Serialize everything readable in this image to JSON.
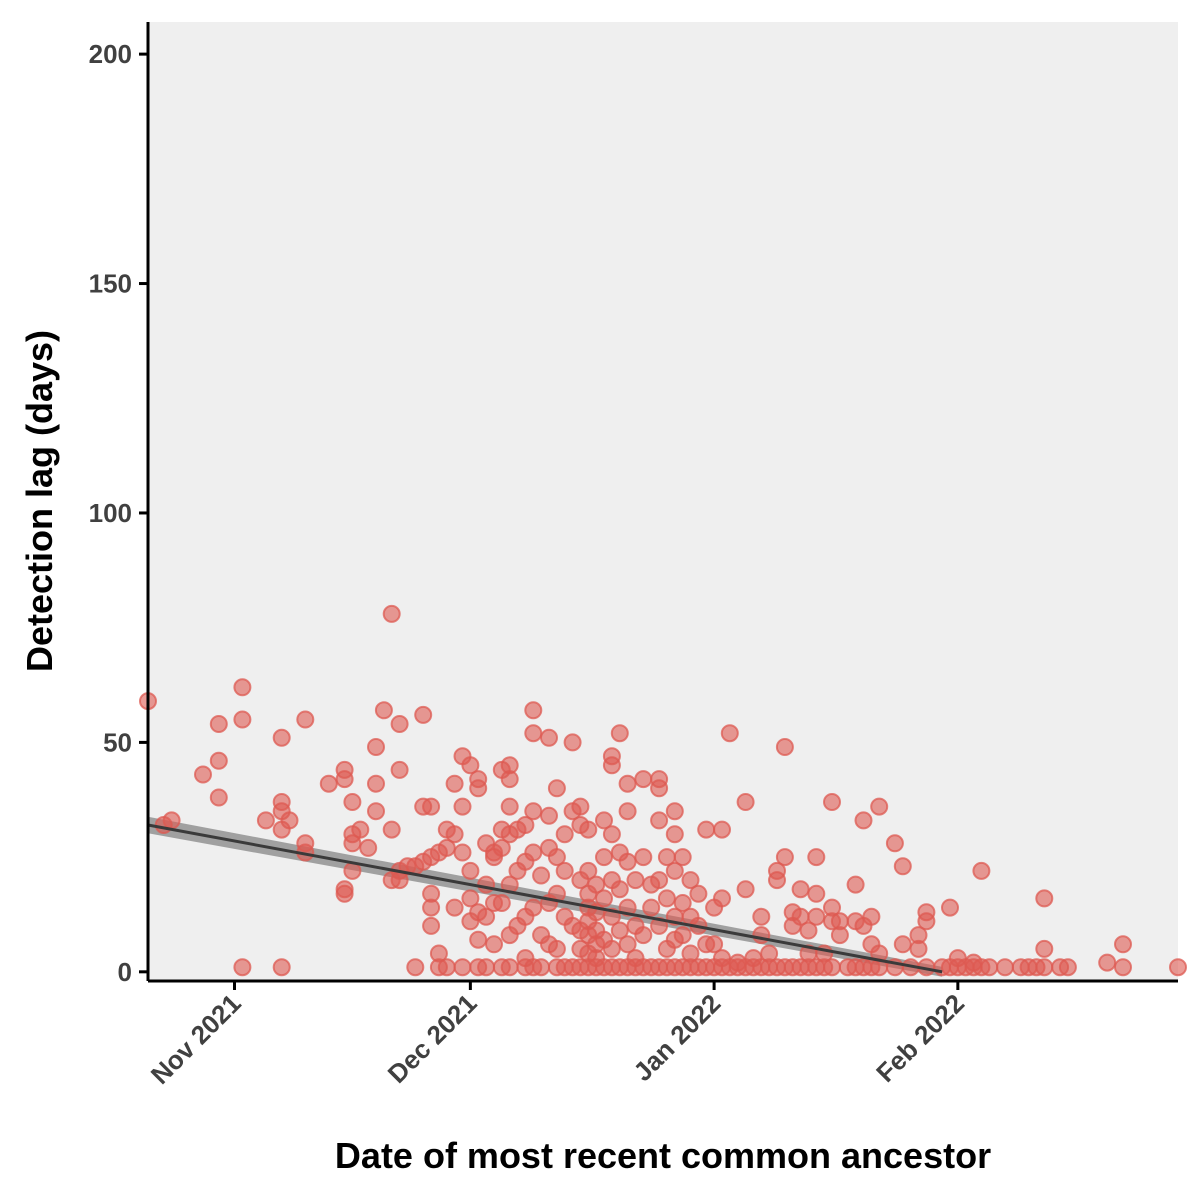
{
  "chart_data": {
    "type": "scatter",
    "title": "",
    "xlabel": "Date of most recent common ancestor",
    "ylabel": "Detection lag (days)",
    "xlim": [
      "2021-10-21",
      "2022-03-01"
    ],
    "ylim": [
      -2,
      207
    ],
    "x_ticks": [
      {
        "date": "2021-11-01",
        "label": "Nov 2021"
      },
      {
        "date": "2021-12-01",
        "label": "Dec 2021"
      },
      {
        "date": "2022-01-01",
        "label": "Jan 2022"
      },
      {
        "date": "2022-02-01",
        "label": "Feb 2022"
      }
    ],
    "y_ticks": [
      0,
      50,
      100,
      150,
      200
    ],
    "grid": false,
    "legend": "none",
    "colors": {
      "point": "#de5a52",
      "trend_line": "#3a3a3a",
      "confidence_band": "#8c8c8c",
      "panel_background": "#efefef",
      "axis": "#000000"
    },
    "trend": {
      "start": {
        "date": "2021-10-21",
        "value": 32
      },
      "end": {
        "date": "2022-01-30",
        "value": 0
      },
      "band_halfwidth_days": 1.8
    },
    "points": [
      [
        "2021-10-21",
        59
      ],
      [
        "2021-10-23",
        32
      ],
      [
        "2021-10-24",
        33
      ],
      [
        "2021-10-28",
        43
      ],
      [
        "2021-10-30",
        38
      ],
      [
        "2021-10-30",
        46
      ],
      [
        "2021-10-30",
        54
      ],
      [
        "2021-11-02",
        62
      ],
      [
        "2021-11-02",
        55
      ],
      [
        "2021-11-02",
        1
      ],
      [
        "2021-11-05",
        33
      ],
      [
        "2021-11-07",
        51
      ],
      [
        "2021-11-07",
        37
      ],
      [
        "2021-11-07",
        35
      ],
      [
        "2021-11-07",
        31
      ],
      [
        "2021-11-07",
        1
      ],
      [
        "2021-11-08",
        33
      ],
      [
        "2021-11-10",
        55
      ],
      [
        "2021-11-10",
        28
      ],
      [
        "2021-11-10",
        26
      ],
      [
        "2021-11-13",
        41
      ],
      [
        "2021-11-15",
        44
      ],
      [
        "2021-11-15",
        42
      ],
      [
        "2021-11-15",
        18
      ],
      [
        "2021-11-15",
        17
      ],
      [
        "2021-11-16",
        37
      ],
      [
        "2021-11-16",
        30
      ],
      [
        "2021-11-16",
        28
      ],
      [
        "2021-11-16",
        22
      ],
      [
        "2021-11-17",
        31
      ],
      [
        "2021-11-18",
        27
      ],
      [
        "2021-11-19",
        49
      ],
      [
        "2021-11-19",
        41
      ],
      [
        "2021-11-19",
        35
      ],
      [
        "2021-11-20",
        57
      ],
      [
        "2021-11-21",
        78
      ],
      [
        "2021-11-21",
        31
      ],
      [
        "2021-11-21",
        20
      ],
      [
        "2021-11-22",
        54
      ],
      [
        "2021-11-22",
        44
      ],
      [
        "2021-11-22",
        22
      ],
      [
        "2021-11-22",
        20
      ],
      [
        "2021-11-23",
        23
      ],
      [
        "2021-11-24",
        23
      ],
      [
        "2021-11-24",
        1
      ],
      [
        "2021-11-25",
        56
      ],
      [
        "2021-11-25",
        36
      ],
      [
        "2021-11-25",
        24
      ],
      [
        "2021-11-26",
        36
      ],
      [
        "2021-11-26",
        25
      ],
      [
        "2021-11-26",
        17
      ],
      [
        "2021-11-26",
        14
      ],
      [
        "2021-11-26",
        10
      ],
      [
        "2021-11-27",
        26
      ],
      [
        "2021-11-27",
        4
      ],
      [
        "2021-11-27",
        1
      ],
      [
        "2021-11-28",
        31
      ],
      [
        "2021-11-28",
        27
      ],
      [
        "2021-11-28",
        1
      ],
      [
        "2021-11-29",
        41
      ],
      [
        "2021-11-29",
        30
      ],
      [
        "2021-11-29",
        14
      ],
      [
        "2021-11-30",
        47
      ],
      [
        "2021-11-30",
        36
      ],
      [
        "2021-11-30",
        26
      ],
      [
        "2021-11-30",
        1
      ],
      [
        "2021-12-01",
        45
      ],
      [
        "2021-12-01",
        22
      ],
      [
        "2021-12-01",
        16
      ],
      [
        "2021-12-01",
        11
      ],
      [
        "2021-12-02",
        42
      ],
      [
        "2021-12-02",
        40
      ],
      [
        "2021-12-02",
        13
      ],
      [
        "2021-12-02",
        7
      ],
      [
        "2021-12-02",
        1
      ],
      [
        "2021-12-03",
        28
      ],
      [
        "2021-12-03",
        19
      ],
      [
        "2021-12-03",
        12
      ],
      [
        "2021-12-03",
        1
      ],
      [
        "2021-12-04",
        26
      ],
      [
        "2021-12-04",
        25
      ],
      [
        "2021-12-04",
        15
      ],
      [
        "2021-12-04",
        6
      ],
      [
        "2021-12-05",
        44
      ],
      [
        "2021-12-05",
        31
      ],
      [
        "2021-12-05",
        27
      ],
      [
        "2021-12-05",
        15
      ],
      [
        "2021-12-05",
        1
      ],
      [
        "2021-12-06",
        45
      ],
      [
        "2021-12-06",
        42
      ],
      [
        "2021-12-06",
        36
      ],
      [
        "2021-12-06",
        30
      ],
      [
        "2021-12-06",
        19
      ],
      [
        "2021-12-06",
        8
      ],
      [
        "2021-12-06",
        1
      ],
      [
        "2021-12-07",
        31
      ],
      [
        "2021-12-07",
        22
      ],
      [
        "2021-12-07",
        10
      ],
      [
        "2021-12-08",
        32
      ],
      [
        "2021-12-08",
        24
      ],
      [
        "2021-12-08",
        12
      ],
      [
        "2021-12-08",
        3
      ],
      [
        "2021-12-08",
        1
      ],
      [
        "2021-12-09",
        57
      ],
      [
        "2021-12-09",
        52
      ],
      [
        "2021-12-09",
        35
      ],
      [
        "2021-12-09",
        26
      ],
      [
        "2021-12-09",
        14
      ],
      [
        "2021-12-09",
        1
      ],
      [
        "2021-12-10",
        21
      ],
      [
        "2021-12-10",
        8
      ],
      [
        "2021-12-10",
        1
      ],
      [
        "2021-12-11",
        51
      ],
      [
        "2021-12-11",
        34
      ],
      [
        "2021-12-11",
        27
      ],
      [
        "2021-12-11",
        15
      ],
      [
        "2021-12-11",
        6
      ],
      [
        "2021-12-12",
        40
      ],
      [
        "2021-12-12",
        25
      ],
      [
        "2021-12-12",
        17
      ],
      [
        "2021-12-12",
        5
      ],
      [
        "2021-12-12",
        1
      ],
      [
        "2021-12-13",
        30
      ],
      [
        "2021-12-13",
        22
      ],
      [
        "2021-12-13",
        12
      ],
      [
        "2021-12-13",
        1
      ],
      [
        "2021-12-14",
        50
      ],
      [
        "2021-12-14",
        35
      ],
      [
        "2021-12-14",
        10
      ],
      [
        "2021-12-14",
        1
      ],
      [
        "2021-12-15",
        36
      ],
      [
        "2021-12-15",
        32
      ],
      [
        "2021-12-15",
        20
      ],
      [
        "2021-12-15",
        9
      ],
      [
        "2021-12-15",
        5
      ],
      [
        "2021-12-15",
        1
      ],
      [
        "2021-12-16",
        31
      ],
      [
        "2021-12-16",
        22
      ],
      [
        "2021-12-16",
        17
      ],
      [
        "2021-12-16",
        14
      ],
      [
        "2021-12-16",
        11
      ],
      [
        "2021-12-16",
        8
      ],
      [
        "2021-12-16",
        4
      ],
      [
        "2021-12-16",
        1
      ],
      [
        "2021-12-17",
        19
      ],
      [
        "2021-12-17",
        13
      ],
      [
        "2021-12-17",
        9
      ],
      [
        "2021-12-17",
        6
      ],
      [
        "2021-12-17",
        3
      ],
      [
        "2021-12-17",
        1
      ],
      [
        "2021-12-18",
        33
      ],
      [
        "2021-12-18",
        25
      ],
      [
        "2021-12-18",
        16
      ],
      [
        "2021-12-18",
        7
      ],
      [
        "2021-12-18",
        1
      ],
      [
        "2021-12-19",
        47
      ],
      [
        "2021-12-19",
        45
      ],
      [
        "2021-12-19",
        30
      ],
      [
        "2021-12-19",
        20
      ],
      [
        "2021-12-19",
        12
      ],
      [
        "2021-12-19",
        5
      ],
      [
        "2021-12-19",
        1
      ],
      [
        "2021-12-20",
        52
      ],
      [
        "2021-12-20",
        26
      ],
      [
        "2021-12-20",
        18
      ],
      [
        "2021-12-20",
        9
      ],
      [
        "2021-12-20",
        1
      ],
      [
        "2021-12-21",
        41
      ],
      [
        "2021-12-21",
        35
      ],
      [
        "2021-12-21",
        24
      ],
      [
        "2021-12-21",
        14
      ],
      [
        "2021-12-21",
        6
      ],
      [
        "2021-12-21",
        1
      ],
      [
        "2021-12-22",
        20
      ],
      [
        "2021-12-22",
        10
      ],
      [
        "2021-12-22",
        3
      ],
      [
        "2021-12-22",
        1
      ],
      [
        "2021-12-23",
        42
      ],
      [
        "2021-12-23",
        25
      ],
      [
        "2021-12-23",
        8
      ],
      [
        "2021-12-23",
        1
      ],
      [
        "2021-12-24",
        19
      ],
      [
        "2021-12-24",
        14
      ],
      [
        "2021-12-24",
        1
      ],
      [
        "2021-12-25",
        42
      ],
      [
        "2021-12-25",
        40
      ],
      [
        "2021-12-25",
        33
      ],
      [
        "2021-12-25",
        20
      ],
      [
        "2021-12-25",
        10
      ],
      [
        "2021-12-25",
        1
      ],
      [
        "2021-12-26",
        25
      ],
      [
        "2021-12-26",
        16
      ],
      [
        "2021-12-26",
        5
      ],
      [
        "2021-12-26",
        1
      ],
      [
        "2021-12-27",
        35
      ],
      [
        "2021-12-27",
        30
      ],
      [
        "2021-12-27",
        22
      ],
      [
        "2021-12-27",
        12
      ],
      [
        "2021-12-27",
        7
      ],
      [
        "2021-12-27",
        1
      ],
      [
        "2021-12-28",
        25
      ],
      [
        "2021-12-28",
        15
      ],
      [
        "2021-12-28",
        8
      ],
      [
        "2021-12-28",
        1
      ],
      [
        "2021-12-29",
        20
      ],
      [
        "2021-12-29",
        12
      ],
      [
        "2021-12-29",
        4
      ],
      [
        "2021-12-29",
        1
      ],
      [
        "2021-12-30",
        17
      ],
      [
        "2021-12-30",
        10
      ],
      [
        "2021-12-30",
        1
      ],
      [
        "2021-12-31",
        31
      ],
      [
        "2021-12-31",
        6
      ],
      [
        "2021-12-31",
        1
      ],
      [
        "2022-01-01",
        14
      ],
      [
        "2022-01-01",
        6
      ],
      [
        "2022-01-01",
        1
      ],
      [
        "2022-01-02",
        31
      ],
      [
        "2022-01-02",
        16
      ],
      [
        "2022-01-02",
        3
      ],
      [
        "2022-01-02",
        1
      ],
      [
        "2022-01-03",
        52
      ],
      [
        "2022-01-03",
        1
      ],
      [
        "2022-01-04",
        2
      ],
      [
        "2022-01-04",
        1
      ],
      [
        "2022-01-05",
        37
      ],
      [
        "2022-01-05",
        18
      ],
      [
        "2022-01-05",
        1
      ],
      [
        "2022-01-06",
        3
      ],
      [
        "2022-01-06",
        1
      ],
      [
        "2022-01-07",
        12
      ],
      [
        "2022-01-07",
        8
      ],
      [
        "2022-01-07",
        1
      ],
      [
        "2022-01-08",
        4
      ],
      [
        "2022-01-08",
        1
      ],
      [
        "2022-01-09",
        22
      ],
      [
        "2022-01-09",
        20
      ],
      [
        "2022-01-09",
        1
      ],
      [
        "2022-01-10",
        49
      ],
      [
        "2022-01-10",
        25
      ],
      [
        "2022-01-10",
        1
      ],
      [
        "2022-01-11",
        13
      ],
      [
        "2022-01-11",
        10
      ],
      [
        "2022-01-11",
        1
      ],
      [
        "2022-01-12",
        18
      ],
      [
        "2022-01-12",
        12
      ],
      [
        "2022-01-12",
        1
      ],
      [
        "2022-01-13",
        9
      ],
      [
        "2022-01-13",
        4
      ],
      [
        "2022-01-13",
        1
      ],
      [
        "2022-01-14",
        25
      ],
      [
        "2022-01-14",
        17
      ],
      [
        "2022-01-14",
        12
      ],
      [
        "2022-01-14",
        1
      ],
      [
        "2022-01-15",
        4
      ],
      [
        "2022-01-15",
        1
      ],
      [
        "2022-01-16",
        37
      ],
      [
        "2022-01-16",
        14
      ],
      [
        "2022-01-16",
        11
      ],
      [
        "2022-01-16",
        1
      ],
      [
        "2022-01-17",
        11
      ],
      [
        "2022-01-17",
        8
      ],
      [
        "2022-01-18",
        1
      ],
      [
        "2022-01-19",
        19
      ],
      [
        "2022-01-19",
        11
      ],
      [
        "2022-01-19",
        1
      ],
      [
        "2022-01-20",
        33
      ],
      [
        "2022-01-20",
        10
      ],
      [
        "2022-01-20",
        1
      ],
      [
        "2022-01-21",
        12
      ],
      [
        "2022-01-21",
        6
      ],
      [
        "2022-01-21",
        1
      ],
      [
        "2022-01-22",
        36
      ],
      [
        "2022-01-22",
        4
      ],
      [
        "2022-01-22",
        1
      ],
      [
        "2022-01-24",
        28
      ],
      [
        "2022-01-24",
        1
      ],
      [
        "2022-01-25",
        23
      ],
      [
        "2022-01-25",
        6
      ],
      [
        "2022-01-26",
        1
      ],
      [
        "2022-01-27",
        8
      ],
      [
        "2022-01-27",
        5
      ],
      [
        "2022-01-28",
        13
      ],
      [
        "2022-01-28",
        11
      ],
      [
        "2022-01-28",
        1
      ],
      [
        "2022-01-30",
        1
      ],
      [
        "2022-01-31",
        14
      ],
      [
        "2022-01-31",
        1
      ],
      [
        "2022-02-01",
        3
      ],
      [
        "2022-02-01",
        1
      ],
      [
        "2022-02-02",
        1
      ],
      [
        "2022-02-03",
        2
      ],
      [
        "2022-02-03",
        1
      ],
      [
        "2022-02-04",
        22
      ],
      [
        "2022-02-04",
        1
      ],
      [
        "2022-02-05",
        1
      ],
      [
        "2022-02-07",
        1
      ],
      [
        "2022-02-09",
        1
      ],
      [
        "2022-02-10",
        1
      ],
      [
        "2022-02-11",
        1
      ],
      [
        "2022-02-12",
        16
      ],
      [
        "2022-02-12",
        5
      ],
      [
        "2022-02-12",
        1
      ],
      [
        "2022-02-14",
        1
      ],
      [
        "2022-02-15",
        1
      ],
      [
        "2022-02-20",
        2
      ],
      [
        "2022-02-22",
        6
      ],
      [
        "2022-02-22",
        1
      ],
      [
        "2022-03-01",
        1
      ]
    ]
  }
}
